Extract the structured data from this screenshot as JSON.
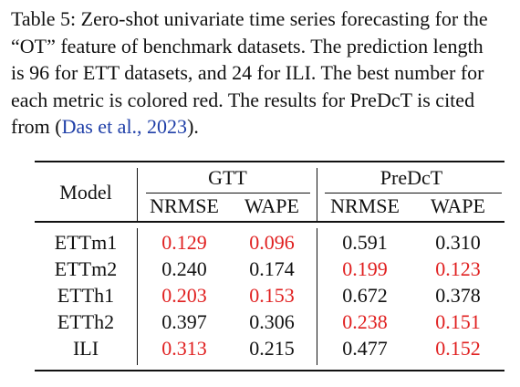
{
  "caption": {
    "lines": [
      "Table 5: Zero-shot univariate time series forecasting for the",
      "“OT” feature of benchmark datasets. The prediction length",
      "is 96 for ETT datasets, and 24 for ILI. The best number for",
      "each metric is colored red. The results for PreDcT is cited"
    ],
    "last_prefix": "from (",
    "citation": "Das et al., 2023",
    "last_suffix": ")."
  },
  "table": {
    "model_header": "Model",
    "groups": [
      "GTT",
      "PreDcT"
    ],
    "metrics": [
      "NRMSE",
      "WAPE",
      "NRMSE",
      "WAPE"
    ],
    "rows": [
      {
        "model": "ETTm1",
        "values": [
          "0.129",
          "0.096",
          "0.591",
          "0.310"
        ],
        "best": [
          true,
          true,
          false,
          false
        ]
      },
      {
        "model": "ETTm2",
        "values": [
          "0.240",
          "0.174",
          "0.199",
          "0.123"
        ],
        "best": [
          false,
          false,
          true,
          true
        ]
      },
      {
        "model": "ETTh1",
        "values": [
          "0.203",
          "0.153",
          "0.672",
          "0.378"
        ],
        "best": [
          true,
          true,
          false,
          false
        ]
      },
      {
        "model": "ETTh2",
        "values": [
          "0.397",
          "0.306",
          "0.238",
          "0.151"
        ],
        "best": [
          false,
          false,
          true,
          true
        ]
      },
      {
        "model": "ILI",
        "values": [
          "0.313",
          "0.215",
          "0.477",
          "0.152"
        ],
        "best": [
          true,
          false,
          false,
          true
        ]
      }
    ],
    "best_color": "#e02020"
  }
}
